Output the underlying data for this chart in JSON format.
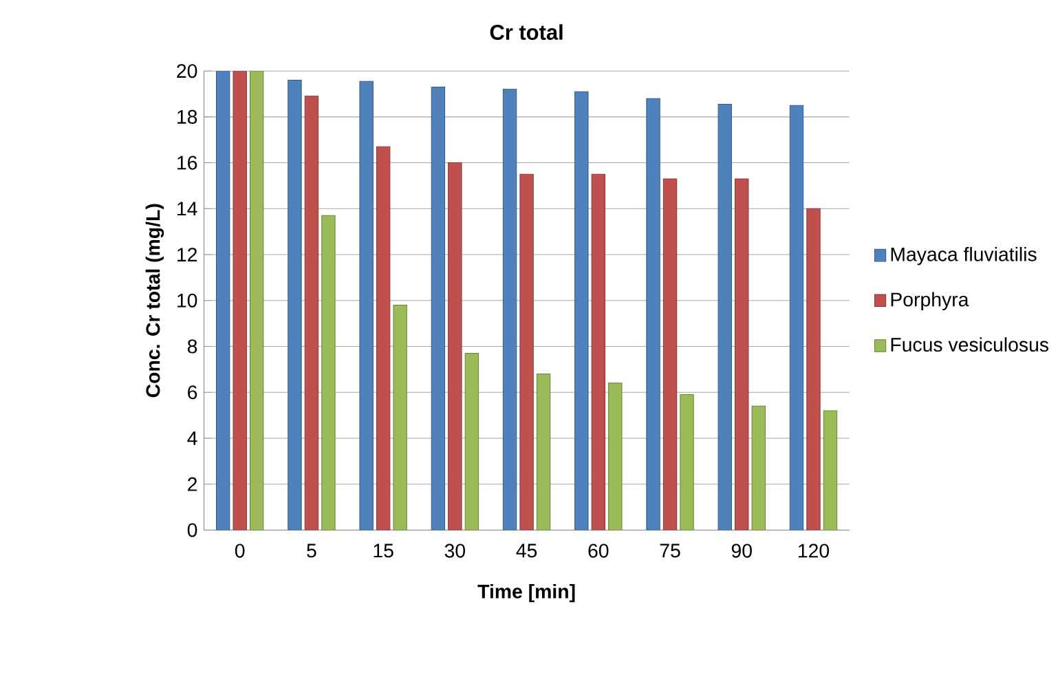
{
  "chart_data": {
    "type": "bar",
    "title": "Cr total",
    "xlabel": "Time [min]",
    "ylabel": "Conc. Cr total (mg/L)",
    "categories": [
      "0",
      "5",
      "15",
      "30",
      "45",
      "60",
      "75",
      "90",
      "120"
    ],
    "series": [
      {
        "name": "Mayaca fluviatilis",
        "color": "#4f81bd",
        "values": [
          20,
          19.6,
          19.55,
          19.3,
          19.2,
          19.1,
          18.8,
          18.55,
          18.5
        ]
      },
      {
        "name": "Porphyra",
        "color": "#c0504d",
        "values": [
          20,
          18.9,
          16.7,
          16.0,
          15.5,
          15.5,
          15.3,
          15.3,
          14.0
        ]
      },
      {
        "name": "Fucus vesiculosus",
        "color": "#9bbb59",
        "values": [
          20,
          13.7,
          9.8,
          7.7,
          6.8,
          6.4,
          5.9,
          5.4,
          5.2
        ]
      }
    ],
    "ylim": [
      0,
      20
    ],
    "yticks": [
      0,
      2,
      4,
      6,
      8,
      10,
      12,
      14,
      16,
      18,
      20
    ],
    "grid": "y",
    "legend": "right"
  }
}
